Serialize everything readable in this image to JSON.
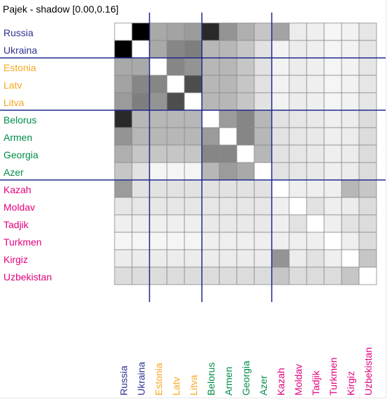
{
  "chart_data": {
    "type": "heatmap",
    "title": "Pajek - shadow [0.00,0.16]",
    "labels": [
      "Russia",
      "Ukraina",
      "Estonia",
      "Latv",
      "Litva",
      "Belorus",
      "Armen",
      "Georgia",
      "Azer",
      "Kazah",
      "Moldav",
      "Tadjik",
      "Turkmen",
      "Kirgiz",
      "Uzbekistan"
    ],
    "groups": [
      {
        "members": [
          "Russia",
          "Ukraina"
        ],
        "color": "#2e3192"
      },
      {
        "members": [
          "Estonia",
          "Latv",
          "Litva"
        ],
        "color": "#f7a823"
      },
      {
        "members": [
          "Belorus",
          "Armen",
          "Georgia",
          "Azer"
        ],
        "color": "#008c45"
      },
      {
        "members": [
          "Kazah",
          "Moldav",
          "Tadjik",
          "Turkmen",
          "Kirgiz",
          "Uzbekistan"
        ],
        "color": "#e4007c"
      }
    ],
    "group_divider_color": "#1c2a8c",
    "value_range": [
      0.0,
      0.16
    ],
    "matrix": [
      [
        0.0,
        0.16,
        0.054,
        0.058,
        0.063,
        0.134,
        0.067,
        0.05,
        0.036,
        0.058,
        0.012,
        0.01,
        0.006,
        0.008,
        0.016
      ],
      [
        0.16,
        0.0,
        0.054,
        0.076,
        0.081,
        0.045,
        0.045,
        0.036,
        0.018,
        0.008,
        0.012,
        0.01,
        0.006,
        0.008,
        0.016
      ],
      [
        0.054,
        0.054,
        0.0,
        0.076,
        0.067,
        0.045,
        0.045,
        0.036,
        0.018,
        0.008,
        0.012,
        0.01,
        0.006,
        0.008,
        0.016
      ],
      [
        0.058,
        0.076,
        0.076,
        0.0,
        0.112,
        0.045,
        0.045,
        0.036,
        0.018,
        0.008,
        0.012,
        0.01,
        0.006,
        0.008,
        0.016
      ],
      [
        0.063,
        0.081,
        0.067,
        0.112,
        0.0,
        0.045,
        0.045,
        0.036,
        0.018,
        0.008,
        0.012,
        0.01,
        0.006,
        0.008,
        0.016
      ],
      [
        0.134,
        0.045,
        0.045,
        0.045,
        0.045,
        0.0,
        0.063,
        0.076,
        0.045,
        0.018,
        0.016,
        0.014,
        0.01,
        0.012,
        0.022
      ],
      [
        0.067,
        0.045,
        0.045,
        0.045,
        0.045,
        0.063,
        0.0,
        0.076,
        0.045,
        0.018,
        0.016,
        0.014,
        0.01,
        0.012,
        0.022
      ],
      [
        0.05,
        0.036,
        0.036,
        0.036,
        0.036,
        0.076,
        0.076,
        0.0,
        0.045,
        0.018,
        0.016,
        0.014,
        0.01,
        0.012,
        0.022
      ],
      [
        0.036,
        0.018,
        0.006,
        0.006,
        0.006,
        0.045,
        0.063,
        0.054,
        0.0,
        0.018,
        0.016,
        0.014,
        0.01,
        0.012,
        0.022
      ],
      [
        0.063,
        0.018,
        0.018,
        0.018,
        0.018,
        0.018,
        0.018,
        0.018,
        0.018,
        0.0,
        0.01,
        0.01,
        0.01,
        0.045,
        0.036
      ],
      [
        0.016,
        0.016,
        0.016,
        0.016,
        0.016,
        0.016,
        0.016,
        0.016,
        0.016,
        0.01,
        0.0,
        0.018,
        0.01,
        0.012,
        0.022
      ],
      [
        0.01,
        0.01,
        0.01,
        0.01,
        0.01,
        0.014,
        0.014,
        0.014,
        0.014,
        0.01,
        0.018,
        0.0,
        0.01,
        0.018,
        0.022
      ],
      [
        0.006,
        0.006,
        0.006,
        0.006,
        0.006,
        0.01,
        0.01,
        0.01,
        0.01,
        0.01,
        0.01,
        0.01,
        0.0,
        0.01,
        0.022
      ],
      [
        0.012,
        0.012,
        0.012,
        0.012,
        0.012,
        0.012,
        0.012,
        0.012,
        0.012,
        0.067,
        0.012,
        0.018,
        0.01,
        0.0,
        0.036
      ],
      [
        0.022,
        0.022,
        0.022,
        0.022,
        0.022,
        0.022,
        0.022,
        0.022,
        0.022,
        0.036,
        0.022,
        0.022,
        0.022,
        0.036,
        0.0
      ]
    ]
  }
}
